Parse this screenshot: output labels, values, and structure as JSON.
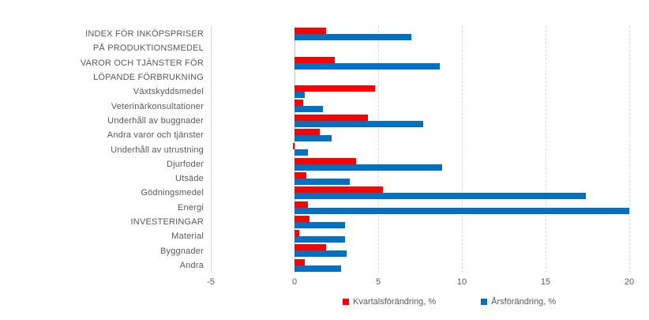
{
  "colors": {
    "bar_red": "#FF0000",
    "bar_blue": "#0070C0",
    "gridline": "#D9D9D9",
    "zero_line": "#BFBFBF",
    "text": "#595959",
    "background": "#FFFFFF"
  },
  "chart_data": {
    "type": "bar",
    "orientation": "horizontal",
    "title": "",
    "xlabel": "",
    "ylabel": "",
    "xlim": [
      -5,
      20
    ],
    "xticks": [
      -5,
      0,
      5,
      10,
      15,
      20
    ],
    "grid": "vertical, dashed, light gray",
    "legend_position": "bottom",
    "series_meta": [
      {
        "name": "Kvartalsförändring, %",
        "color": "#FF0000"
      },
      {
        "name": "Årsförändring, %",
        "color": "#0070C0"
      }
    ],
    "rows": [
      {
        "label": "INDEX FÖR INKÖPSPRISER",
        "kvartalsforandring": 1.9,
        "arsforandring": 7.0
      },
      {
        "label": "PÅ PRODUKTIONSMEDEL",
        "kvartalsforandring": null,
        "arsforandring": null
      },
      {
        "label": "VAROR OCH TJÄNSTER FÖR",
        "kvartalsforandring": 2.4,
        "arsforandring": 8.7
      },
      {
        "label": "LÖPANDE FÖRBRUKNING",
        "kvartalsforandring": null,
        "arsforandring": null
      },
      {
        "label": "Växtskyddsmedel",
        "kvartalsforandring": 4.8,
        "arsforandring": 0.6
      },
      {
        "label": "Veterinärkonsultationer",
        "kvartalsforandring": 0.5,
        "arsforandring": 1.7
      },
      {
        "label": "Underhåll av buggnader",
        "kvartalsforandring": 4.4,
        "arsforandring": 7.7
      },
      {
        "label": "Andra varor och tjänster",
        "kvartalsforandring": 1.5,
        "arsforandring": 2.2
      },
      {
        "label": "Underhåll av utrustning",
        "kvartalsforandring": -0.1,
        "arsforandring": 0.8
      },
      {
        "label": "Djurfoder",
        "kvartalsforandring": 3.7,
        "arsforandring": 8.8
      },
      {
        "label": "Utsäde",
        "kvartalsforandring": 0.7,
        "arsforandring": 3.3
      },
      {
        "label": "Gödningsmedel",
        "kvartalsforandring": 5.3,
        "arsforandring": 17.4
      },
      {
        "label": "Energi",
        "kvartalsforandring": 0.8,
        "arsforandring": 20.1
      },
      {
        "label": "INVESTERINGAR",
        "kvartalsforandring": 0.9,
        "arsforandring": 3.0
      },
      {
        "label": "Material",
        "kvartalsforandring": 0.3,
        "arsforandring": 3.0
      },
      {
        "label": "Byggnader",
        "kvartalsforandring": 1.9,
        "arsforandring": 3.1
      },
      {
        "label": "Andra",
        "kvartalsforandring": 0.6,
        "arsforandring": 2.8
      }
    ]
  }
}
